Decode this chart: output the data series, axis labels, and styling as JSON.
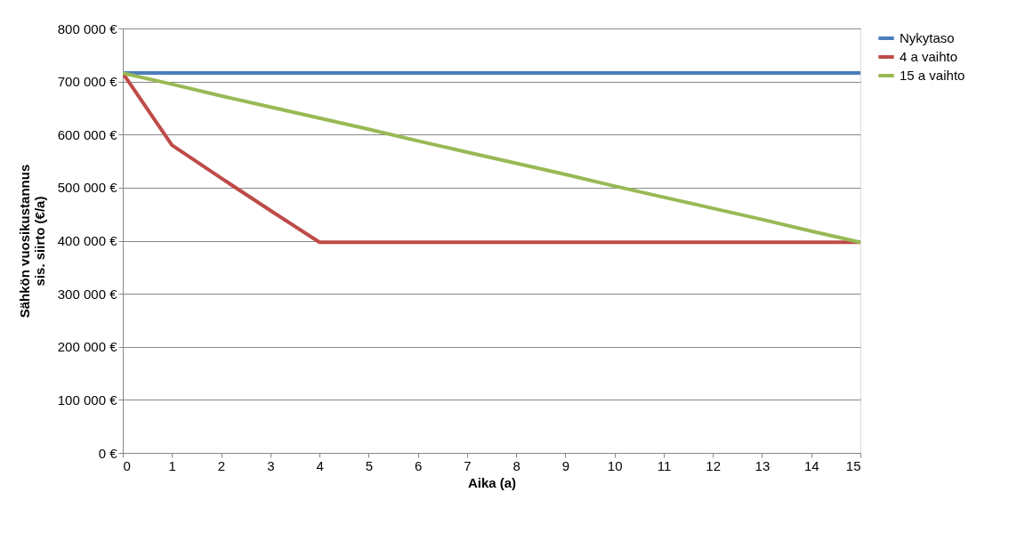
{
  "chart_data": {
    "type": "line",
    "xlabel": "Aika (a)",
    "ylabel": "Sähkön vuosikustannus\nsis. siirto (€/a)",
    "x": [
      0,
      1,
      2,
      3,
      4,
      5,
      6,
      7,
      8,
      9,
      10,
      11,
      12,
      13,
      14,
      15
    ],
    "series": [
      {
        "name": "Nykytaso",
        "color": "#4a7ebb",
        "values": [
          716000,
          716000,
          716000,
          716000,
          716000,
          716000,
          716000,
          716000,
          716000,
          716000,
          716000,
          716000,
          716000,
          716000,
          716000,
          716000
        ]
      },
      {
        "name": "4 a vaihto",
        "color": "#be4b48",
        "values": [
          716000,
          580000,
          518000,
          457000,
          397000,
          397000,
          397000,
          397000,
          397000,
          397000,
          397000,
          397000,
          397000,
          397000,
          397000,
          397000
        ]
      },
      {
        "name": "15 a vaihto",
        "color": "#98b954",
        "values": [
          716000,
          695000,
          673000,
          652000,
          631000,
          610000,
          588000,
          567000,
          546000,
          525000,
          503000,
          482000,
          461000,
          440000,
          418000,
          397000
        ]
      }
    ],
    "xlim": [
      0,
      15
    ],
    "xticks": [
      0,
      1,
      2,
      3,
      4,
      5,
      6,
      7,
      8,
      9,
      10,
      11,
      12,
      13,
      14,
      15
    ],
    "ylim": [
      0,
      800000
    ],
    "yticks": [
      {
        "value": 0,
        "label": "0 €"
      },
      {
        "value": 100000,
        "label": "100 000 €"
      },
      {
        "value": 200000,
        "label": "200 000 €"
      },
      {
        "value": 300000,
        "label": "300 000 €"
      },
      {
        "value": 400000,
        "label": "400 000 €"
      },
      {
        "value": 500000,
        "label": "500 000 €"
      },
      {
        "value": 600000,
        "label": "600 000 €"
      },
      {
        "value": 700000,
        "label": "700 000 €"
      },
      {
        "value": 800000,
        "label": "800 000 €"
      }
    ],
    "grid": "y",
    "legend": "right",
    "marker": "none",
    "line_style": "solid"
  }
}
